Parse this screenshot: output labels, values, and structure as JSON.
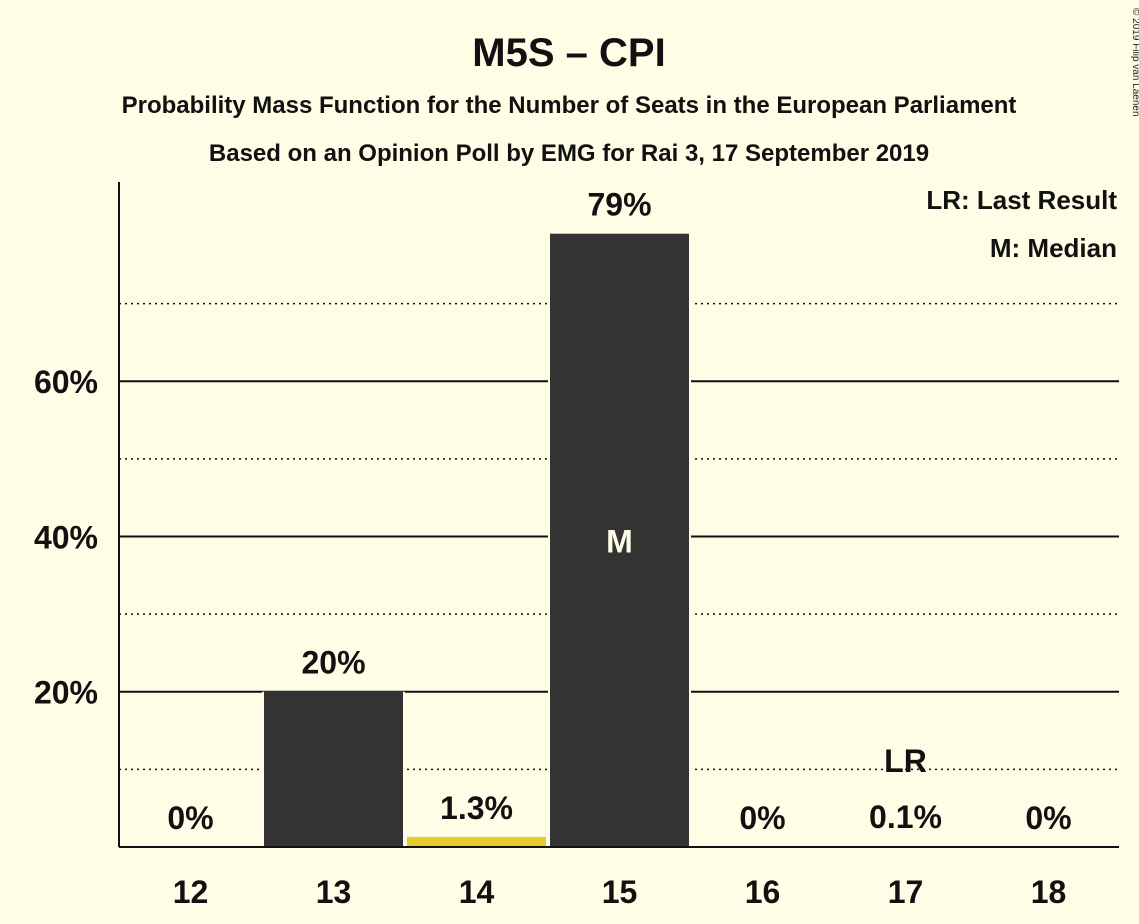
{
  "title": "M5S – CPI",
  "subtitle": "Probability Mass Function for the Number of Seats in the European Parliament",
  "subtitle2": "Based on an Opinion Poll by EMG for Rai 3, 17 September 2019",
  "copyright": "© 2019 Filip van Laenen",
  "legend": {
    "last_result": "LR: Last Result",
    "median": "M: Median"
  },
  "colors": {
    "background": "#FFFDE6",
    "bar": "#333333",
    "highlight": "#E6CC2E"
  },
  "chart_data": {
    "type": "bar",
    "categories": [
      "12",
      "13",
      "14",
      "15",
      "16",
      "17",
      "18"
    ],
    "values": [
      0,
      20,
      1.3,
      79,
      0,
      0.1,
      0
    ],
    "data_labels": [
      "0%",
      "20%",
      "1.3%",
      "79%",
      "0%",
      "0.1%",
      "0%"
    ],
    "bar_colors": [
      "#333333",
      "#333333",
      "#E6CC2E",
      "#333333",
      "#333333",
      "#333333",
      "#333333"
    ],
    "markers": {
      "median": {
        "category": "15",
        "label": "M"
      },
      "last_result": {
        "category": "17",
        "label": "LR"
      }
    },
    "yticks": [
      20,
      40,
      60
    ],
    "ytick_labels": [
      "20%",
      "40%",
      "60%"
    ],
    "minor_gridlines": [
      10,
      30,
      50,
      70
    ],
    "ylim": [
      0,
      86
    ],
    "grid": true,
    "legend_position": "top-right"
  }
}
